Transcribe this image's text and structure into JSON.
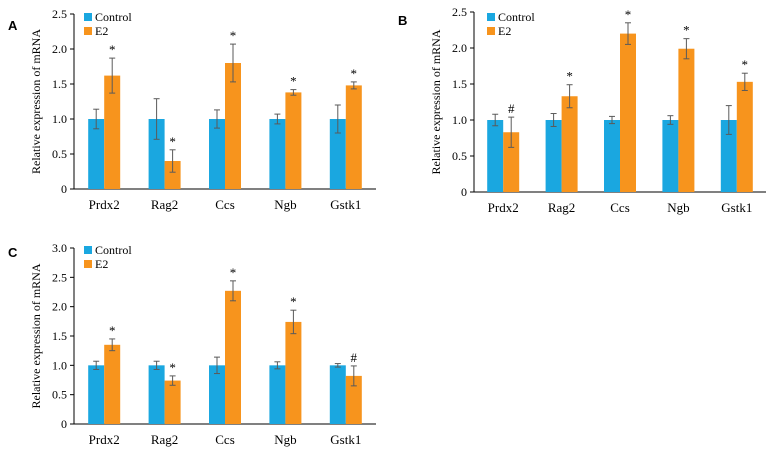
{
  "colors": {
    "control": "#1aa7e0",
    "e2": "#f7941d",
    "error_bar": "#5a5a5a"
  },
  "panels": [
    "A",
    "B",
    "C"
  ],
  "chart_data": [
    {
      "panel": "A",
      "type": "bar",
      "categories": [
        "Prdx2",
        "Rag2",
        "Ccs",
        "Ngb",
        "Gstk1"
      ],
      "series": [
        {
          "name": "Control",
          "values": [
            1.0,
            1.0,
            1.0,
            1.0,
            1.0
          ],
          "errors": [
            0.14,
            0.29,
            0.13,
            0.07,
            0.2
          ]
        },
        {
          "name": "E2",
          "values": [
            1.62,
            0.4,
            1.8,
            1.38,
            1.48
          ],
          "errors": [
            0.25,
            0.16,
            0.27,
            0.04,
            0.05
          ]
        }
      ],
      "markers": [
        "*",
        "*",
        "*",
        "*",
        "*"
      ],
      "ylabel": "Relative expression of mRNA",
      "ylim": [
        0,
        2.5
      ],
      "yticks": [
        "0",
        "0.5",
        "1.0",
        "1.5",
        "2.0",
        "2.5"
      ],
      "legend": "top-left",
      "grid": false
    },
    {
      "panel": "B",
      "type": "bar",
      "categories": [
        "Prdx2",
        "Rag2",
        "Ccs",
        "Ngb",
        "Gstk1"
      ],
      "series": [
        {
          "name": "Control",
          "values": [
            1.0,
            1.0,
            1.0,
            1.0,
            1.0
          ],
          "errors": [
            0.08,
            0.09,
            0.05,
            0.06,
            0.2
          ]
        },
        {
          "name": "E2",
          "values": [
            0.83,
            1.33,
            2.2,
            1.99,
            1.53
          ],
          "errors": [
            0.21,
            0.16,
            0.15,
            0.14,
            0.12
          ]
        }
      ],
      "markers": [
        "#",
        "*",
        "*",
        "*",
        "*"
      ],
      "ylabel": "Relative expression of mRNA",
      "ylim": [
        0,
        2.5
      ],
      "yticks": [
        "0",
        "0.5",
        "1.0",
        "1.5",
        "2.0",
        "2.5"
      ],
      "legend": "top-left",
      "grid": false
    },
    {
      "panel": "C",
      "type": "bar",
      "categories": [
        "Prdx2",
        "Rag2",
        "Ccs",
        "Ngb",
        "Gstk1"
      ],
      "series": [
        {
          "name": "Control",
          "values": [
            1.0,
            1.0,
            1.0,
            1.0,
            1.0
          ],
          "errors": [
            0.07,
            0.07,
            0.14,
            0.06,
            0.03
          ]
        },
        {
          "name": "E2",
          "values": [
            1.35,
            0.74,
            2.27,
            1.74,
            0.82
          ],
          "errors": [
            0.1,
            0.08,
            0.17,
            0.2,
            0.17
          ]
        }
      ],
      "markers": [
        "*",
        "*",
        "*",
        "*",
        "#"
      ],
      "ylabel": "Relative expression of mRNA",
      "ylim": [
        0,
        3.0
      ],
      "yticks": [
        "0",
        "0.5",
        "1.0",
        "1.5",
        "2.0",
        "2.5",
        "3.0"
      ],
      "legend": "top-left",
      "grid": false
    }
  ]
}
